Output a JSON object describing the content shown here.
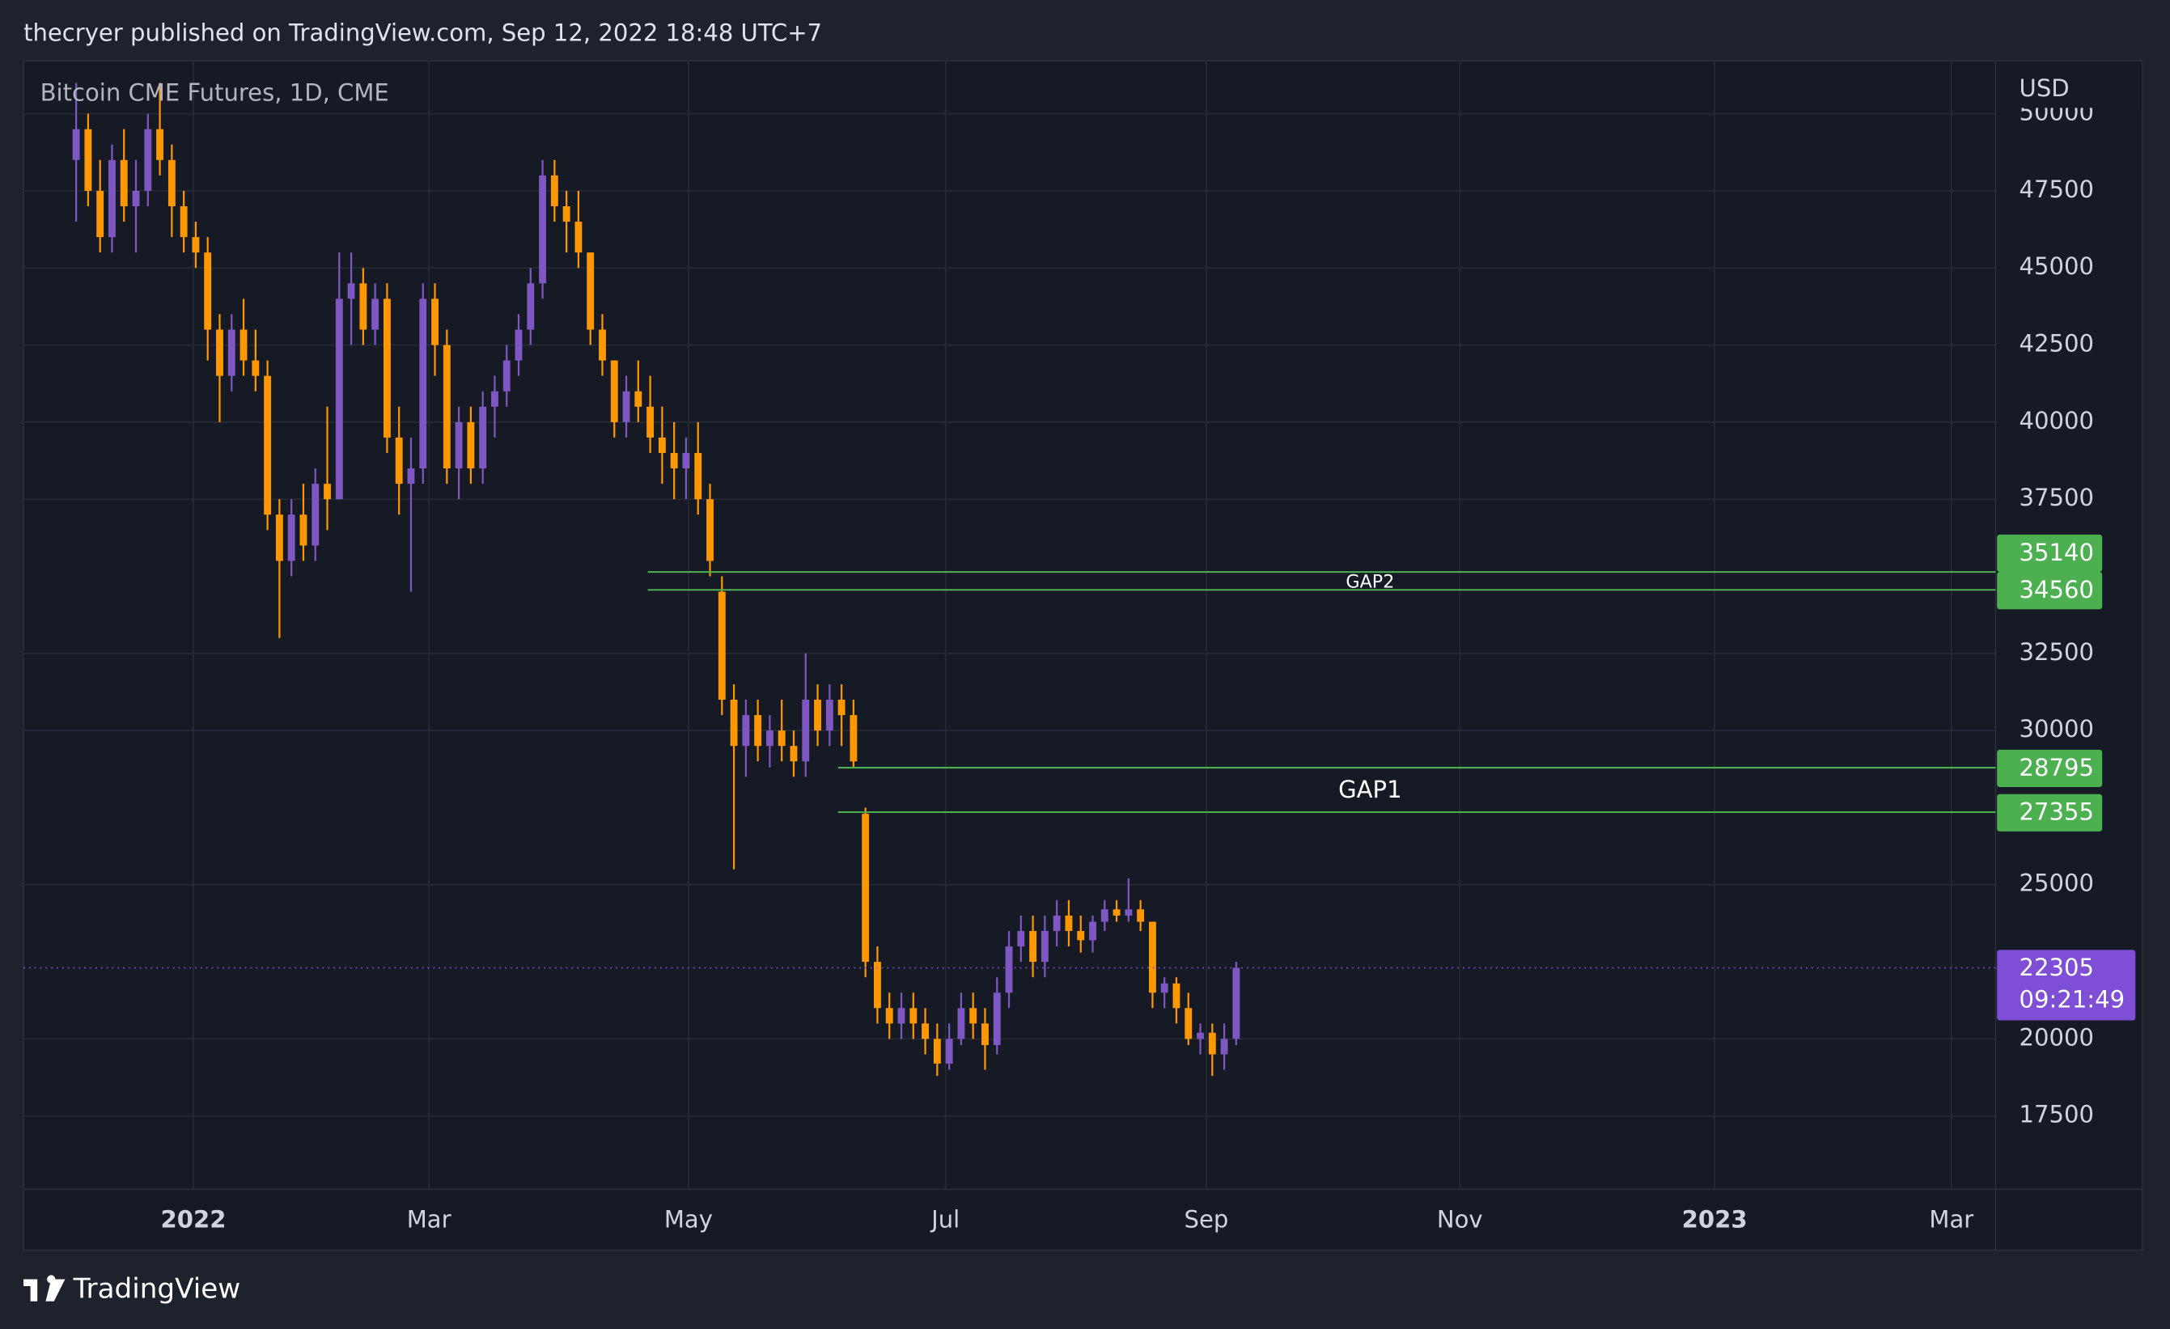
{
  "header": {
    "byline": "thecryer published on TradingView.com, Sep 12, 2022 18:48 UTC+7",
    "brand": "TradingView"
  },
  "chart_data": {
    "type": "candlestick",
    "title": "Bitcoin CME Futures, 1D, CME",
    "y_axis_label": "USD",
    "up_color": "#7e57c2",
    "down_color": "#ff9800",
    "grid": true,
    "xlim": [
      -4.4,
      160.5
    ],
    "xticks": [
      {
        "value": 9.8,
        "label": "2022"
      },
      {
        "value": 29.5,
        "label": "Mar"
      },
      {
        "value": 51.2,
        "label": "May"
      },
      {
        "value": 72.7,
        "label": "Jul"
      },
      {
        "value": 94.5,
        "label": "Sep"
      },
      {
        "value": 115.7,
        "label": "Nov"
      },
      {
        "value": 137,
        "label": "2023"
      },
      {
        "value": 156.8,
        "label": "Mar"
      }
    ],
    "ylim": [
      15123,
      51715
    ],
    "yticks": [
      17500,
      20000,
      25000,
      30000,
      32500,
      37500,
      40000,
      42500,
      45000,
      47500,
      50000
    ],
    "gaps": [
      {
        "label": "GAP2",
        "levels": [
          35140,
          34560
        ],
        "start": 47.8,
        "color": "#4caf50"
      },
      {
        "label": "GAP1",
        "levels": [
          28795,
          27355
        ],
        "start": 63.7,
        "color": "#4caf50"
      }
    ],
    "last_price": 22305,
    "last_price_color": "#7e4fd6",
    "countdown": "09:21:49",
    "ohlc": [
      [
        48500,
        51000,
        46500,
        49500
      ],
      [
        49500,
        50000,
        47000,
        47500
      ],
      [
        47500,
        48500,
        45500,
        46000
      ],
      [
        46000,
        49000,
        45500,
        48500
      ],
      [
        48500,
        49500,
        46500,
        47000
      ],
      [
        47000,
        48500,
        45500,
        47500
      ],
      [
        47500,
        50000,
        47000,
        49500
      ],
      [
        49500,
        51000,
        48000,
        48500
      ],
      [
        48500,
        49000,
        46000,
        47000
      ],
      [
        47000,
        47500,
        45500,
        46000
      ],
      [
        46000,
        46500,
        45000,
        45500
      ],
      [
        45500,
        46000,
        42000,
        43000
      ],
      [
        43000,
        43500,
        40000,
        41500
      ],
      [
        41500,
        43500,
        41000,
        43000
      ],
      [
        43000,
        44000,
        41500,
        42000
      ],
      [
        42000,
        43000,
        41000,
        41500
      ],
      [
        41500,
        42000,
        36500,
        37000
      ],
      [
        37000,
        37500,
        33000,
        35500
      ],
      [
        35500,
        37500,
        35000,
        37000
      ],
      [
        37000,
        38000,
        35500,
        36000
      ],
      [
        36000,
        38500,
        35500,
        38000
      ],
      [
        38000,
        40500,
        36500,
        37500
      ],
      [
        37500,
        45500,
        37500,
        44000
      ],
      [
        44000,
        45500,
        42500,
        44500
      ],
      [
        44500,
        45000,
        42500,
        43000
      ],
      [
        43000,
        44500,
        42500,
        44000
      ],
      [
        44000,
        44500,
        39000,
        39500
      ],
      [
        39500,
        40500,
        37000,
        38000
      ],
      [
        38000,
        39500,
        34500,
        38500
      ],
      [
        38500,
        44500,
        38000,
        44000
      ],
      [
        44000,
        44500,
        41500,
        42500
      ],
      [
        42500,
        43000,
        38000,
        38500
      ],
      [
        38500,
        40500,
        37500,
        40000
      ],
      [
        40000,
        40500,
        38000,
        38500
      ],
      [
        38500,
        41000,
        38000,
        40500
      ],
      [
        40500,
        41500,
        39500,
        41000
      ],
      [
        41000,
        42500,
        40500,
        42000
      ],
      [
        42000,
        43500,
        41500,
        43000
      ],
      [
        43000,
        45000,
        42500,
        44500
      ],
      [
        44500,
        48500,
        44000,
        48000
      ],
      [
        48000,
        48500,
        46500,
        47000
      ],
      [
        47000,
        47500,
        45500,
        46500
      ],
      [
        46500,
        47500,
        45000,
        45500
      ],
      [
        45500,
        45500,
        42500,
        43000
      ],
      [
        43000,
        43500,
        41500,
        42000
      ],
      [
        42000,
        42000,
        39500,
        40000
      ],
      [
        40000,
        41500,
        39500,
        41000
      ],
      [
        41000,
        42000,
        40000,
        40500
      ],
      [
        40500,
        41500,
        39000,
        39500
      ],
      [
        39500,
        40500,
        38000,
        39000
      ],
      [
        39000,
        40000,
        37500,
        38500
      ],
      [
        38500,
        39500,
        37500,
        39000
      ],
      [
        39000,
        40000,
        37000,
        37500
      ],
      [
        37500,
        38000,
        35000,
        35500
      ],
      [
        34500,
        35000,
        30500,
        31000
      ],
      [
        31000,
        31500,
        25500,
        29500
      ],
      [
        29500,
        31000,
        28500,
        30500
      ],
      [
        30500,
        31000,
        29000,
        29500
      ],
      [
        29500,
        30500,
        28800,
        30000
      ],
      [
        30000,
        31000,
        29000,
        29500
      ],
      [
        29500,
        30000,
        28500,
        29000
      ],
      [
        29000,
        32500,
        28500,
        31000
      ],
      [
        31000,
        31500,
        29500,
        30000
      ],
      [
        30000,
        31500,
        29500,
        31000
      ],
      [
        31000,
        31500,
        29500,
        30500
      ],
      [
        30500,
        31000,
        28800,
        29000
      ],
      [
        27300,
        27500,
        22000,
        22500
      ],
      [
        22500,
        23000,
        20500,
        21000
      ],
      [
        21000,
        21500,
        20000,
        20500
      ],
      [
        20500,
        21500,
        20000,
        21000
      ],
      [
        21000,
        21500,
        20000,
        20500
      ],
      [
        20500,
        21000,
        19500,
        20000
      ],
      [
        20000,
        20500,
        18800,
        19200
      ],
      [
        19200,
        20500,
        19000,
        20000
      ],
      [
        20000,
        21500,
        19800,
        21000
      ],
      [
        21000,
        21500,
        20000,
        20500
      ],
      [
        20500,
        21000,
        19000,
        19800
      ],
      [
        19800,
        22000,
        19500,
        21500
      ],
      [
        21500,
        23500,
        21000,
        23000
      ],
      [
        23000,
        24000,
        22500,
        23500
      ],
      [
        23500,
        24000,
        22000,
        22500
      ],
      [
        22500,
        24000,
        22000,
        23500
      ],
      [
        23500,
        24500,
        23000,
        24000
      ],
      [
        24000,
        24500,
        23000,
        23500
      ],
      [
        23500,
        24000,
        22800,
        23200
      ],
      [
        23200,
        24000,
        22800,
        23800
      ],
      [
        23800,
        24500,
        23500,
        24200
      ],
      [
        24200,
        24500,
        23800,
        24000
      ],
      [
        24000,
        25200,
        23800,
        24200
      ],
      [
        24200,
        24500,
        23500,
        23800
      ],
      [
        23800,
        23800,
        21000,
        21500
      ],
      [
        21500,
        22000,
        21000,
        21800
      ],
      [
        21800,
        22000,
        20500,
        21000
      ],
      [
        21000,
        21500,
        19800,
        20000
      ],
      [
        20000,
        20500,
        19500,
        20200
      ],
      [
        20200,
        20500,
        18800,
        19500
      ],
      [
        19500,
        20500,
        19000,
        20000
      ],
      [
        20000,
        22500,
        19800,
        22305
      ]
    ]
  }
}
